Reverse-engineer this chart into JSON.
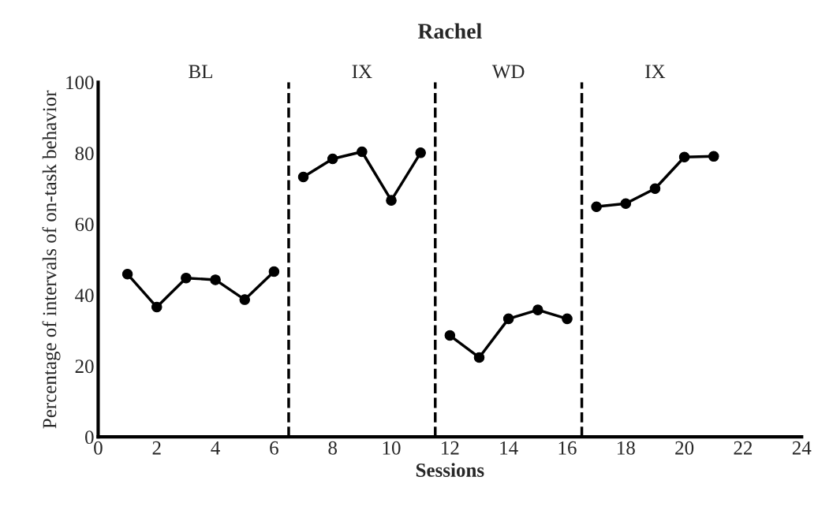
{
  "chart_data": {
    "type": "line",
    "title": "Rachel",
    "xlabel": "Sessions",
    "ylabel": "Percentage of intervals of on-task behavior",
    "series": [
      {
        "color": "#000000",
        "x": [
          1,
          2,
          3,
          4,
          5,
          6
        ],
        "values": [
          45.9,
          36.6,
          44.8,
          44.3,
          38.7,
          46.6
        ]
      },
      {
        "color": "#000000",
        "x": [
          7,
          8,
          9,
          10,
          11
        ],
        "values": [
          73.3,
          78.4,
          80.4,
          66.7,
          80.1
        ]
      },
      {
        "color": "#000000",
        "x": [
          12,
          13,
          14,
          15,
          16
        ],
        "values": [
          28.6,
          22.4,
          33.3,
          35.8,
          33.3
        ]
      },
      {
        "color": "#000000",
        "x": [
          17,
          18,
          19,
          20,
          21
        ],
        "values": [
          64.9,
          65.8,
          70.0,
          78.9,
          79.1
        ]
      }
    ],
    "ref_lines": [
      {
        "axis": "x",
        "value": 6.5,
        "color": "#000000",
        "line_style": "dashed"
      },
      {
        "axis": "x",
        "value": 11.5,
        "color": "#000000",
        "line_style": "dashed"
      },
      {
        "axis": "x",
        "value": 16.5,
        "color": "#000000",
        "line_style": "dashed"
      }
    ],
    "annotations": [
      "BL",
      "IX",
      "WD",
      "IX"
    ],
    "xlim": [
      0,
      24
    ],
    "xticks": [
      0,
      2,
      4,
      6,
      8,
      10,
      12,
      14,
      16,
      18,
      20,
      22,
      24
    ],
    "ylim": [
      0,
      100
    ],
    "yticks": [
      0,
      20,
      40,
      60,
      80,
      100
    ],
    "marker": "circle",
    "line_style": "solid",
    "grid": false,
    "legend": false
  }
}
